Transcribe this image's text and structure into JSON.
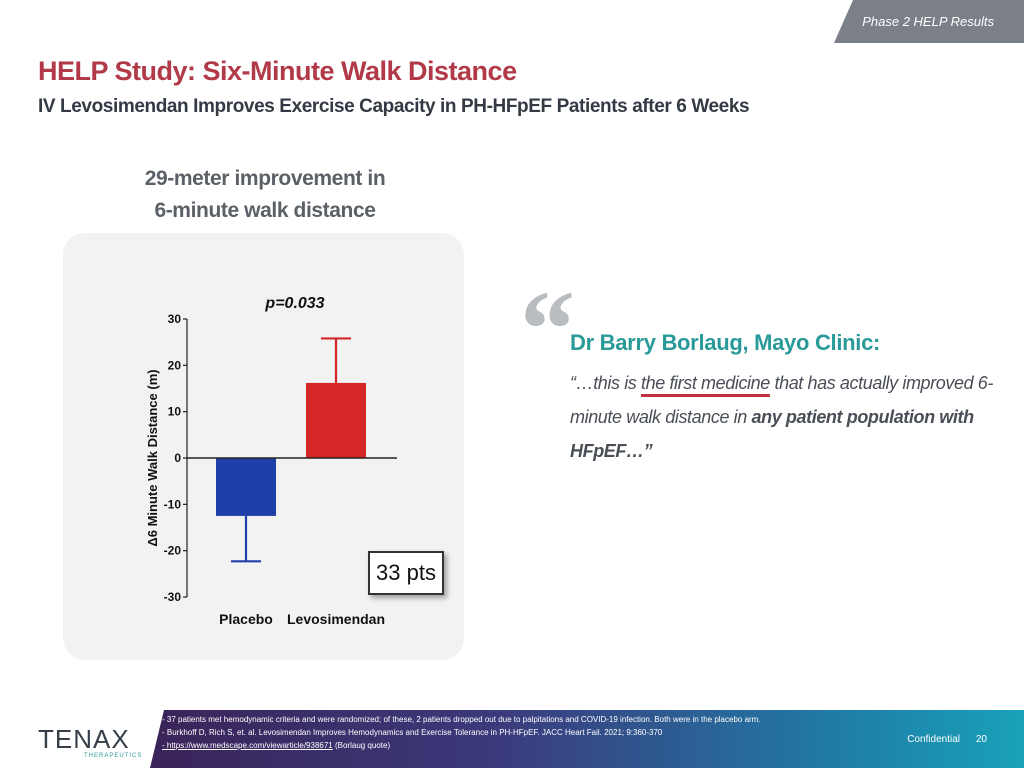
{
  "header": {
    "section_label": "Phase 2 HELP Results"
  },
  "title": "HELP Study: Six-Minute Walk Distance",
  "subtitle": "IV Levosimendan Improves Exercise Capacity in PH-HFpEF Patients after 6 Weeks",
  "chart_heading": {
    "line1": "29-meter improvement in",
    "line2": "6-minute walk distance"
  },
  "chart_data": {
    "type": "bar",
    "categories": [
      "Placebo",
      "Levosimendan"
    ],
    "values": [
      -12.5,
      16.2
    ],
    "error_bars": [
      {
        "low": -22.3,
        "high": null
      },
      {
        "low": null,
        "high": 25.8
      }
    ],
    "colors": [
      "#1f3fa8",
      "#d62728"
    ],
    "ylabel": "Δ6 Minute Walk Distance (m)",
    "ylim": [
      -30,
      30
    ],
    "yticks": [
      30,
      20,
      10,
      0,
      -10,
      -20,
      -30
    ],
    "annotation": "p=0.033",
    "callout": "33 pts",
    "grid": false,
    "legend": "none"
  },
  "quote": {
    "mark": "“",
    "author": "Dr Barry Borlaug, Mayo Clinic:",
    "part1": "“…this is ",
    "underlined": "the first medicine",
    "part2": " that has actually improved 6-minute walk distance in ",
    "emphasis": "any patient population with HFpEF…”"
  },
  "footer": {
    "logo": "TENAX",
    "logo_sub": "THERAPEUTICS",
    "notes": [
      "- 37 patients met hemodynamic criteria and were randomized;  of these, 2 patients dropped out due to palpitations and COVID-19 infection.  Both were in the placebo arm.",
      "- Burkhoff D, Rich S, et. al. Levosimendan Improves Hemodynamics and Exercise Tolerance in PH-HFpEF.  JACC Heart Fail. 2021; 9:360-370"
    ],
    "link": "- https://www.medscape.com/viewarticle/938671",
    "link_note": " (Borlaug quote)",
    "confidential": "Confidential",
    "page_number": "20"
  }
}
